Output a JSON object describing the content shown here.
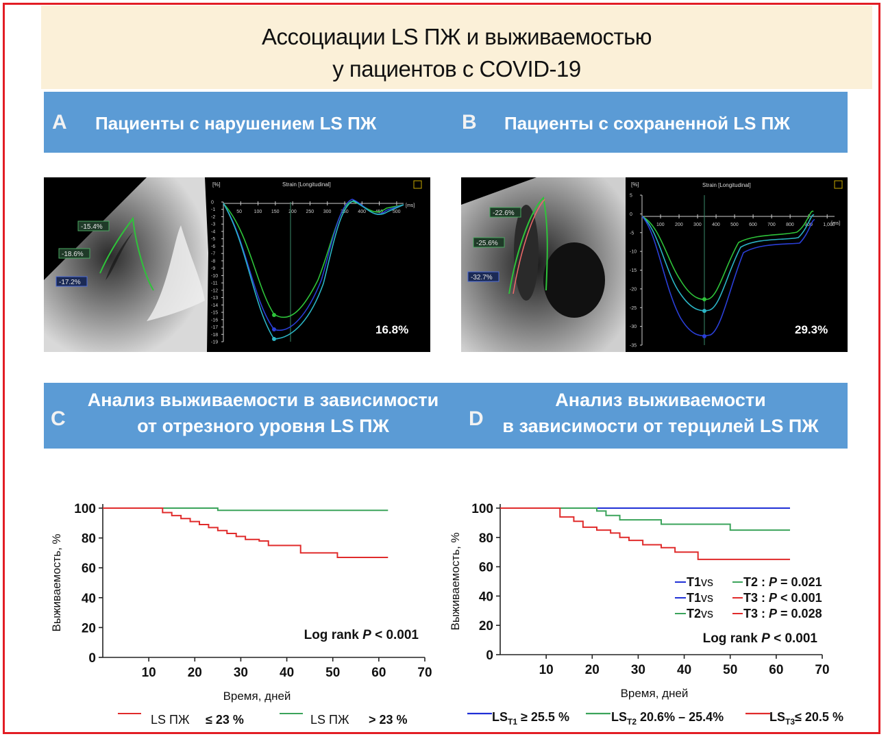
{
  "title": {
    "line1": "Ассоциации LS ПЖ и выживаемостью",
    "line2": "у пациентов с COVID-19"
  },
  "colors": {
    "band": "#5b9bd5",
    "title_bg": "#fbf0d8",
    "frame": "#e21d24",
    "red": "#e02a2a",
    "green": "#3aa35a",
    "blue": "#1f2fd6"
  },
  "panels": {
    "a": {
      "letter": "A",
      "label": "Пациенты с нарушением LS ПЖ"
    },
    "b": {
      "letter": "B",
      "label": "Пациенты с сохраненной LS ПЖ"
    },
    "c": {
      "letter": "C",
      "line1": "Анализ выживаемости в зависимости",
      "line2": "от отрезного уровня LS ПЖ"
    },
    "d": {
      "letter": "D",
      "line1": "Анализ выживаемости",
      "line2": "в зависимости от терцилей LS ПЖ"
    }
  },
  "echo_a": {
    "header": "Strain [Longitudinal]",
    "unit_y": "[%]",
    "unit_x": "[ms]",
    "segments": [
      "-15.4%",
      "-18.6%",
      "-17.2%"
    ],
    "global": "16.8%",
    "x_ticks": [
      "50",
      "100",
      "150",
      "200",
      "250",
      "300",
      "350",
      "400",
      "450",
      "500"
    ],
    "y_ticks": [
      "0",
      "-1",
      "-2",
      "-3",
      "-4",
      "-5",
      "-6",
      "-7",
      "-8",
      "-9",
      "-10",
      "-11",
      "-12",
      "-13",
      "-14",
      "-15",
      "-16",
      "-17",
      "-18",
      "-19"
    ]
  },
  "echo_b": {
    "header": "Strain [Longitudinal]",
    "unit_y": "[%]",
    "unit_x": "[ms]",
    "segments": [
      "-22.6%",
      "-25.6%",
      "-32.7%"
    ],
    "global": "29.3%",
    "x_ticks": [
      "100",
      "200",
      "300",
      "400",
      "500",
      "600",
      "700",
      "800",
      "900",
      "1,000"
    ],
    "y_ticks": [
      "5",
      "0",
      "-5",
      "-10",
      "-15",
      "-20",
      "-25",
      "-30",
      "-35"
    ]
  },
  "chart_data": [
    {
      "type": "line",
      "xlabel": "Время, дней",
      "ylabel": "Выживаемость, %",
      "xlim": [
        0,
        70
      ],
      "ylim": [
        0,
        100
      ],
      "x_ticks": [
        10,
        20,
        30,
        40,
        50,
        60,
        70
      ],
      "y_ticks": [
        0,
        20,
        40,
        60,
        80,
        100
      ],
      "annotation": {
        "prefix": "Log rank ",
        "p": "P",
        "suffix": " < 0.001"
      },
      "legend": [
        {
          "name": "LS ПЖ",
          "cond": "≤ 23 %",
          "color": "#e02a2a"
        },
        {
          "name": "LS ПЖ",
          "cond": "> 23 %",
          "color": "#3aa35a"
        }
      ],
      "series": [
        {
          "color": "#3aa35a",
          "x": [
            0,
            25,
            25,
            62
          ],
          "y": [
            100,
            100,
            98.5,
            98.5
          ]
        },
        {
          "color": "#e02a2a",
          "x": [
            0,
            13,
            13,
            15,
            17,
            19,
            21,
            23,
            25,
            27,
            29,
            31,
            34,
            36,
            42,
            43,
            50,
            51,
            62
          ],
          "y": [
            100,
            100,
            97,
            95,
            93,
            91,
            89,
            87,
            85,
            83,
            81,
            79,
            78,
            75,
            75,
            70,
            70,
            67,
            67
          ]
        }
      ]
    },
    {
      "type": "line",
      "xlabel": "Время, дней",
      "ylabel": "Выживаемость, %",
      "xlim": [
        0,
        70
      ],
      "ylim": [
        0,
        100
      ],
      "x_ticks": [
        10,
        20,
        30,
        40,
        50,
        60,
        70
      ],
      "y_ticks": [
        0,
        20,
        40,
        60,
        80,
        100
      ],
      "annotation": {
        "prefix": "Log rank ",
        "p": "P",
        "suffix": " < 0.001"
      },
      "comparisons": [
        {
          "a": "T1",
          "vs": "vs",
          "b": "T2",
          "colA": "#1f2fd6",
          "colB": "#3aa35a",
          "p": "P",
          "val": " = 0.021"
        },
        {
          "a": "T1",
          "vs": "vs",
          "b": "T3",
          "colA": "#1f2fd6",
          "colB": "#e02a2a",
          "p": "P",
          "val": " < 0.001"
        },
        {
          "a": "T2",
          "vs": "vs",
          "b": "T3",
          "colA": "#3aa35a",
          "colB": "#e02a2a",
          "p": "P",
          "val": " = 0.028"
        }
      ],
      "legend": [
        {
          "prefix": "LS",
          "sub": "T1",
          "cond": " ≥ 25.5 %",
          "color": "#1f2fd6"
        },
        {
          "prefix": "LS",
          "sub": "T2",
          "cond": " 20.6% – 25.4%",
          "color": "#3aa35a"
        },
        {
          "prefix": "LS",
          "sub": "T3",
          "cond": "≤ 20.5 %",
          "color": "#e02a2a"
        }
      ],
      "series": [
        {
          "color": "#1f2fd6",
          "x": [
            0,
            63
          ],
          "y": [
            100,
            100
          ]
        },
        {
          "color": "#3aa35a",
          "x": [
            0,
            21,
            21,
            23,
            23,
            26,
            26,
            35,
            35,
            50,
            50,
            63
          ],
          "y": [
            100,
            100,
            98,
            98,
            95,
            95,
            92,
            92,
            89,
            89,
            85,
            85
          ]
        },
        {
          "color": "#e02a2a",
          "x": [
            0,
            13,
            13,
            16,
            18,
            21,
            24,
            26,
            28,
            31,
            35,
            38,
            43,
            43,
            63
          ],
          "y": [
            100,
            100,
            94,
            91,
            87,
            85,
            83,
            80,
            78,
            75,
            73,
            70,
            70,
            65,
            65
          ]
        }
      ]
    }
  ]
}
